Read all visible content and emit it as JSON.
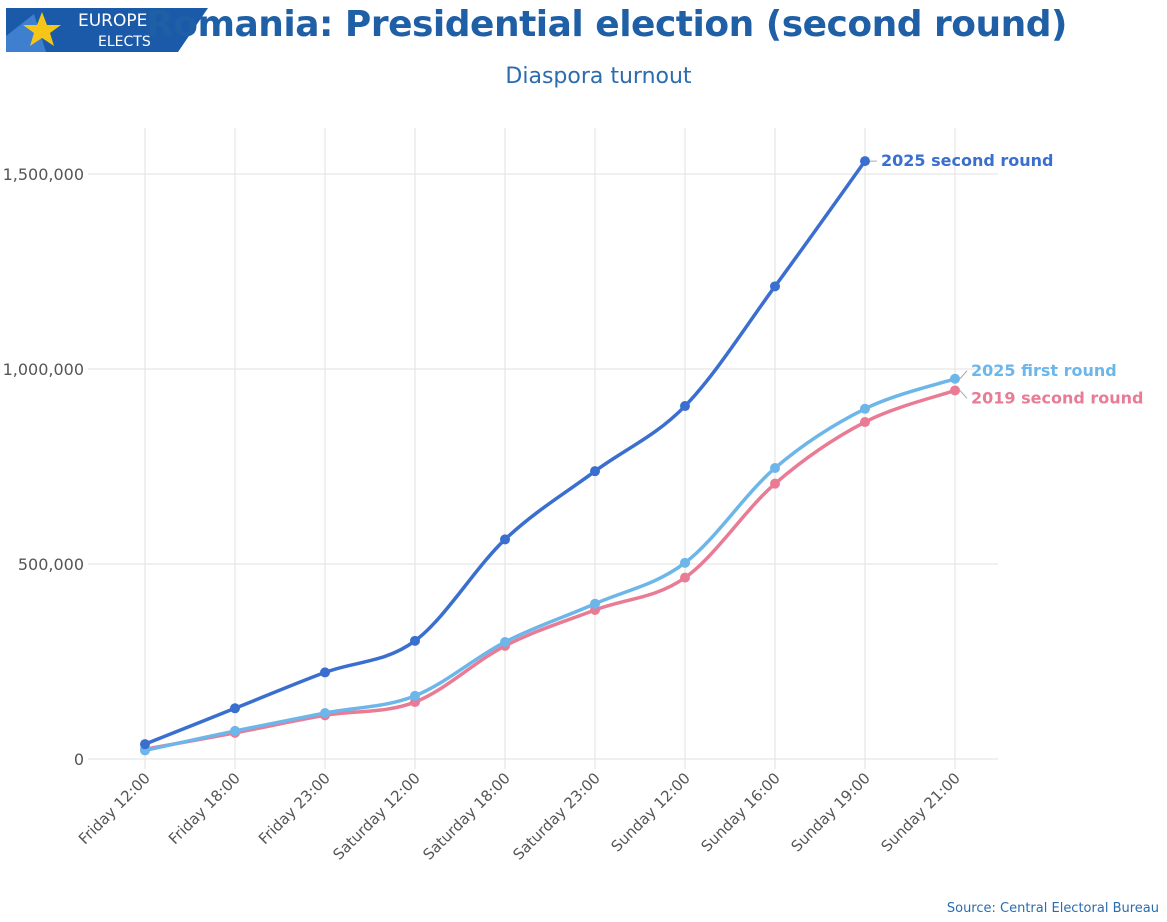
{
  "logo": {
    "line1": "EUROPE",
    "line2": "ELECTS",
    "brand_color": "#1a5aa8",
    "star_color": "#f5c518"
  },
  "header": {
    "title": "Romania: Presidential election (second round)",
    "subtitle": "Diaspora turnout"
  },
  "source": "Source: Central Electoral Bureau",
  "chart_data": {
    "type": "line",
    "categories": [
      "Friday 12:00",
      "Friday 18:00",
      "Friday 23:00",
      "Saturday 12:00",
      "Saturday 18:00",
      "Saturday 23:00",
      "Sunday 12:00",
      "Sunday 16:00",
      "Sunday 19:00",
      "Sunday 21:00"
    ],
    "ylim": [
      0,
      1600000
    ],
    "yticks": [
      0,
      500000,
      1000000,
      1500000
    ],
    "ytick_labels": [
      "0",
      "500,000",
      "1,000,000",
      "1,500,000"
    ],
    "grid": true,
    "series": [
      {
        "name": "2025 second round",
        "color": "#3a6fcf",
        "values": [
          38000,
          130000,
          222000,
          303000,
          563000,
          738000,
          905000,
          1212000,
          1533000,
          null
        ]
      },
      {
        "name": "2025 first round",
        "color": "#6db6ea",
        "values": [
          22000,
          72000,
          118000,
          162000,
          300000,
          398000,
          503000,
          746000,
          898000,
          975000
        ]
      },
      {
        "name": "2019 second round",
        "color": "#e97b95",
        "values": [
          25000,
          67000,
          112000,
          146000,
          290000,
          382000,
          465000,
          706000,
          864000,
          945000
        ]
      }
    ]
  }
}
